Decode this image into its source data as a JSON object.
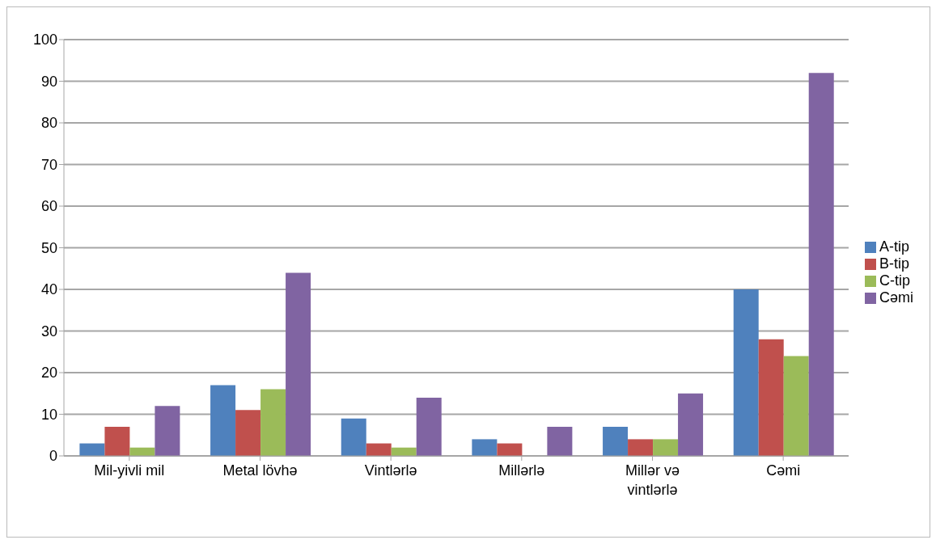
{
  "chart_data": {
    "type": "bar",
    "categories": [
      "Mil-yivli mil",
      "Metal lövhə",
      "Vintlərlə",
      "Millərlə",
      "Millər və vintlərlə",
      "Cəmi"
    ],
    "series": [
      {
        "name": "A-tip",
        "color": "#4f81bd",
        "values": [
          3,
          17,
          9,
          4,
          7,
          40
        ]
      },
      {
        "name": "B-tip",
        "color": "#c0504d",
        "values": [
          7,
          11,
          3,
          3,
          4,
          28
        ]
      },
      {
        "name": "C-tip",
        "color": "#9bbb59",
        "values": [
          2,
          16,
          2,
          0,
          4,
          24
        ]
      },
      {
        "name": "Cəmi",
        "color": "#8064a2",
        "values": [
          12,
          44,
          14,
          7,
          15,
          92
        ]
      }
    ],
    "ylim": [
      0,
      100
    ],
    "yticks": [
      0,
      10,
      20,
      30,
      40,
      50,
      60,
      70,
      80,
      90,
      100
    ],
    "grid": "y",
    "legend": "right"
  }
}
